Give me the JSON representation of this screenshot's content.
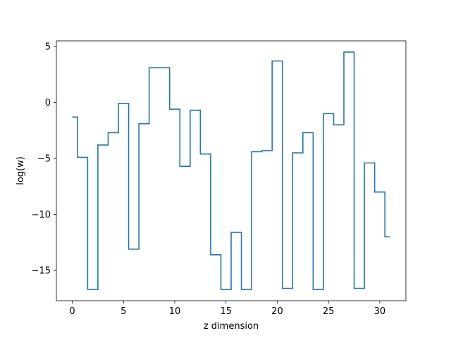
{
  "chart_data": {
    "type": "line",
    "drawstyle": "steps-mid",
    "title": "",
    "xlabel": "z dimension",
    "ylabel": "log(w)",
    "xlim": [
      -1.55,
      32.55
    ],
    "ylim": [
      -17.7,
      5.5
    ],
    "xticks": [
      0,
      5,
      10,
      15,
      20,
      25,
      30
    ],
    "xtick_labels": [
      "0",
      "5",
      "10",
      "15",
      "20",
      "25",
      "30"
    ],
    "yticks": [
      5,
      0,
      -5,
      -10,
      -15
    ],
    "ytick_labels": [
      "5",
      "0",
      "−5",
      "−10",
      "−15"
    ],
    "grid": false,
    "legend": "none",
    "series": [
      {
        "color": "#1f77b4",
        "x": [
          0,
          1,
          2,
          3,
          4,
          5,
          6,
          7,
          8,
          9,
          10,
          11,
          12,
          13,
          14,
          15,
          16,
          17,
          18,
          19,
          20,
          21,
          22,
          23,
          24,
          25,
          26,
          27,
          28,
          29,
          30,
          31
        ],
        "y": [
          -1.3,
          -4.9,
          -16.7,
          -3.8,
          -2.7,
          -0.1,
          -13.1,
          -1.9,
          3.1,
          3.1,
          -0.6,
          -5.7,
          -0.7,
          -4.6,
          -13.6,
          -16.7,
          -11.6,
          -16.7,
          -4.4,
          -4.3,
          3.7,
          -16.6,
          -4.5,
          -2.7,
          -16.7,
          -1.0,
          -2.0,
          4.5,
          -16.6,
          -5.4,
          -8.0,
          -12.0
        ]
      }
    ]
  }
}
